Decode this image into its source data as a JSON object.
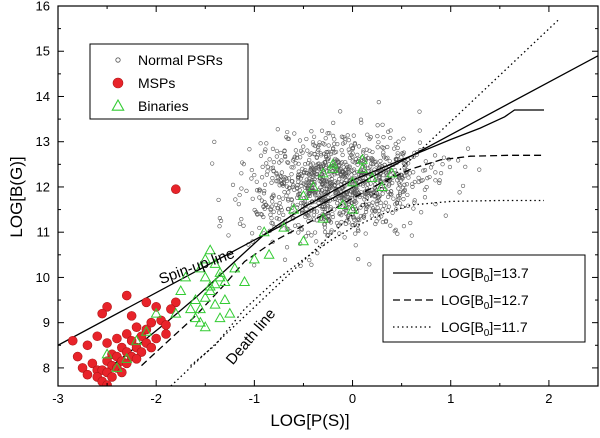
{
  "chart_data": {
    "type": "scatter",
    "title": "",
    "xlabel": "LOG[P(S)]",
    "ylabel": "LOG[B(G)]",
    "xlim": [
      -3,
      2.5
    ],
    "ylim": [
      7.6,
      16
    ],
    "xticks": [
      -3,
      -2,
      -1,
      0,
      1,
      2
    ],
    "xtick_labels": [
      "-3",
      "-2",
      "-1",
      "0",
      "1",
      "2"
    ],
    "yticks": [
      8,
      9,
      10,
      11,
      12,
      13,
      14,
      15,
      16
    ],
    "ytick_labels": [
      "8",
      "9",
      "10",
      "11",
      "12",
      "13",
      "14",
      "15",
      "16"
    ],
    "grid": false,
    "legend_position": "top-left",
    "annotations": [
      {
        "text": "Spin-up line",
        "x": -1.95,
        "y": 9.85,
        "angle": -20
      },
      {
        "text": "Death line",
        "x": -1.22,
        "y": 8.05,
        "angle": -50
      }
    ],
    "series": [
      {
        "name": "Normal PSRs",
        "marker": "open-circle",
        "color": "#555555",
        "cluster": {
          "x_center": -0.15,
          "y_center": 12.05,
          "x_spread": 0.45,
          "y_spread": 0.55,
          "count": 1100
        }
      },
      {
        "name": "MSPs",
        "marker": "filled-circle",
        "color": "#e8232a",
        "x": [
          -2.85,
          -2.5,
          -2.3,
          -2.1,
          -1.8,
          -1.8,
          -2.55,
          -2.25,
          -2.0,
          -1.85,
          -2.8,
          -2.7,
          -2.6,
          -2.5,
          -2.4,
          -2.3,
          -2.2,
          -2.1,
          -2.05,
          -1.95,
          -1.9,
          -2.65,
          -2.45,
          -2.35,
          -2.25,
          -2.15,
          -2.75,
          -2.6,
          -2.5,
          -2.4,
          -2.3,
          -2.2,
          -2.1,
          -2.0,
          -1.9,
          -2.7,
          -2.55,
          -2.45,
          -2.35,
          -2.25,
          -2.15,
          -2.05,
          -2.6,
          -2.5,
          -2.4,
          -2.3,
          -2.2,
          -2.55,
          -2.45,
          -2.35,
          -2.5
        ],
        "y": [
          8.6,
          9.35,
          9.6,
          9.45,
          11.95,
          9.45,
          9.2,
          9.15,
          9.35,
          9.3,
          8.25,
          8.5,
          8.7,
          8.55,
          8.65,
          8.75,
          8.9,
          8.85,
          9.0,
          9.05,
          8.95,
          8.1,
          8.3,
          8.45,
          8.6,
          8.7,
          8.0,
          7.95,
          8.15,
          8.25,
          8.35,
          8.45,
          8.55,
          8.65,
          8.75,
          7.85,
          7.95,
          8.05,
          8.15,
          8.25,
          8.35,
          8.45,
          7.8,
          7.9,
          8.0,
          8.1,
          8.2,
          7.7,
          7.8,
          7.9,
          7.62
        ]
      },
      {
        "name": "Binaries",
        "marker": "open-triangle",
        "color": "#33cc33",
        "x": [
          -1.8,
          -1.75,
          -1.7,
          -1.65,
          -1.6,
          -1.55,
          -1.5,
          -1.45,
          -1.4,
          -1.35,
          -1.6,
          -1.55,
          -1.5,
          -1.45,
          -1.4,
          -1.35,
          -1.3,
          -1.25,
          -1.5,
          -1.45,
          -1.4,
          -1.35,
          -1.3,
          -1.55,
          -1.5,
          -1.2,
          -1.1,
          -1.0,
          -0.9,
          -0.85,
          -0.7,
          -0.6,
          -0.5,
          -0.4,
          -0.3,
          -0.2,
          -0.1,
          0.0,
          0.1,
          0.2,
          0.3,
          0.4,
          -0.5,
          -0.3,
          -0.2,
          0.0,
          0.1,
          -2.3,
          -2.2,
          -2.4,
          -2.5,
          -2.1,
          -2.0
        ],
        "y": [
          9.2,
          9.7,
          10.0,
          9.3,
          9.5,
          10.2,
          10.0,
          9.8,
          9.4,
          9.1,
          9.1,
          9.3,
          9.55,
          9.7,
          9.85,
          10.0,
          9.5,
          9.2,
          10.4,
          10.6,
          10.3,
          10.1,
          9.9,
          9.0,
          8.9,
          10.2,
          9.9,
          10.4,
          11.0,
          10.5,
          11.1,
          11.5,
          11.8,
          12.0,
          12.3,
          12.5,
          11.6,
          12.1,
          12.4,
          12.2,
          12.0,
          12.3,
          10.8,
          11.3,
          12.4,
          11.5,
          12.6,
          8.2,
          8.6,
          8.0,
          8.3,
          8.8,
          9.2
        ]
      }
    ],
    "lines": [
      {
        "name": "Spin-up line",
        "style": "solid",
        "x": [
          -3.0,
          2.5
        ],
        "y": [
          8.5,
          14.9
        ]
      },
      {
        "name": "Death line",
        "style": "dotted",
        "x": [
          -1.85,
          2.1
        ],
        "y": [
          7.6,
          15.7
        ]
      },
      {
        "name": "LOG[B0]=13.7",
        "style": "solid",
        "x": [
          -2.45,
          -2.3,
          -2.1,
          -1.9,
          -1.6,
          -1.2,
          -0.9,
          -0.5,
          0.0,
          0.5,
          1.0,
          1.3,
          1.55,
          1.65,
          1.95
        ],
        "y": [
          8.05,
          8.3,
          8.65,
          9.0,
          9.55,
          10.35,
          10.95,
          11.55,
          12.15,
          12.6,
          13.05,
          13.3,
          13.55,
          13.7,
          13.7
        ]
      },
      {
        "name": "LOG[B0]=12.7",
        "style": "dashed",
        "x": [
          -2.15,
          -1.9,
          -1.6,
          -1.3,
          -1.1,
          -0.8,
          -0.5,
          -0.2,
          0.0,
          0.3,
          0.6,
          0.9,
          1.2,
          1.6,
          1.95
        ],
        "y": [
          8.05,
          8.55,
          9.15,
          9.85,
          10.35,
          10.8,
          11.15,
          11.5,
          11.75,
          12.1,
          12.4,
          12.6,
          12.68,
          12.7,
          12.7
        ]
      },
      {
        "name": "LOG[B0]=11.7",
        "style": "dotted",
        "x": [
          -1.65,
          -1.4,
          -1.1,
          -0.8,
          -0.5,
          -0.2,
          0.0,
          0.3,
          0.6,
          1.0,
          1.5,
          1.95
        ],
        "y": [
          8.05,
          8.5,
          9.3,
          9.9,
          10.4,
          10.85,
          11.1,
          11.4,
          11.6,
          11.68,
          11.7,
          11.7
        ]
      }
    ],
    "legend_upper": [
      {
        "label": "Normal PSRs",
        "marker": "open-circle"
      },
      {
        "label": "MSPs",
        "marker": "filled-circle"
      },
      {
        "label": "Binaries",
        "marker": "open-triangle"
      }
    ],
    "legend_lower": [
      {
        "label_main": "LOG[B",
        "label_sub": "0",
        "label_end": "]=13.7",
        "style": "solid"
      },
      {
        "label_main": "LOG[B",
        "label_sub": "0",
        "label_end": "]=12.7",
        "style": "dashed"
      },
      {
        "label_main": "LOG[B",
        "label_sub": "0",
        "label_end": "]=11.7",
        "style": "dotted"
      }
    ]
  },
  "colors": {
    "msp_fill": "#e8232a",
    "msp_stroke": "#b01818",
    "binary_stroke": "#33cc33",
    "psr_stroke": "#555555"
  }
}
